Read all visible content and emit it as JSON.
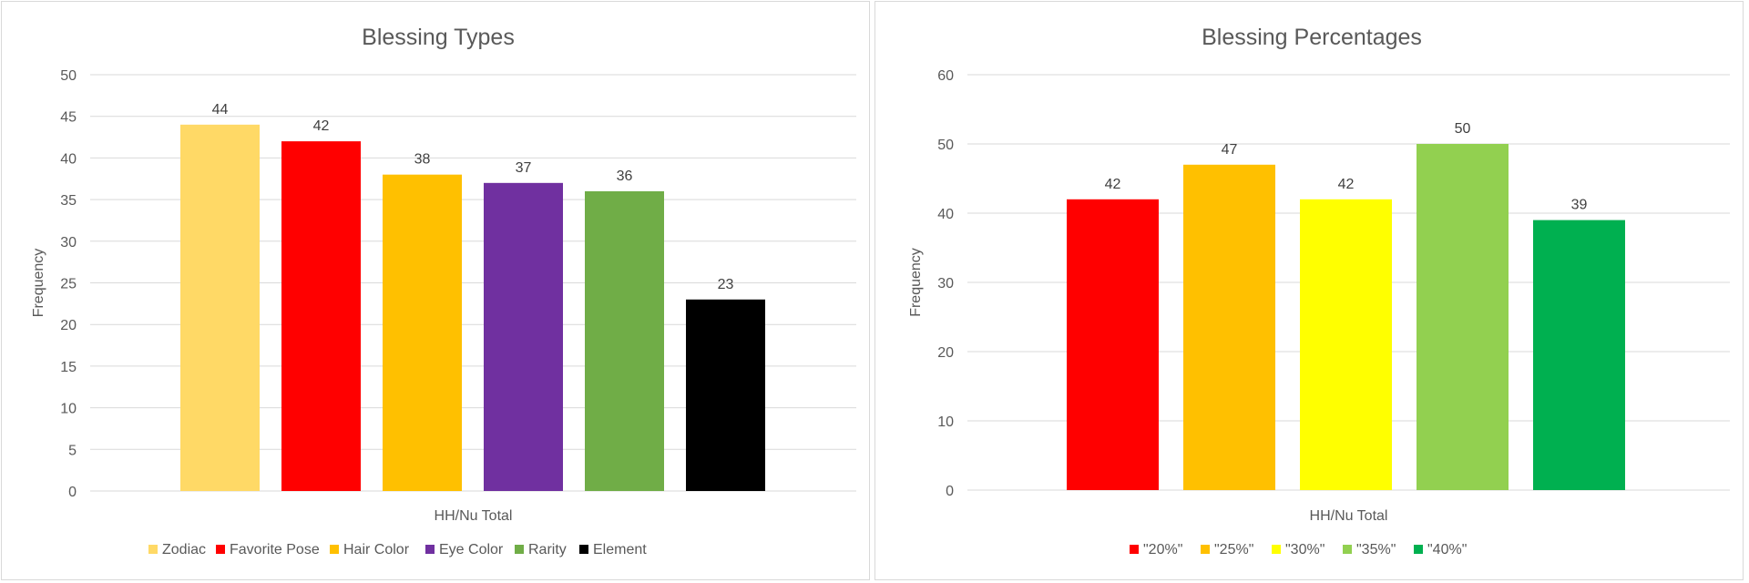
{
  "chart_data": [
    {
      "type": "bar",
      "title": "Blessing Types",
      "xlabel": "HH/Nu Total",
      "ylabel": "Frequency",
      "ylim": [
        0,
        50
      ],
      "ytick_step": 5,
      "categories": [
        "HH/Nu Total"
      ],
      "grid": true,
      "legend_position": "bottom",
      "series": [
        {
          "name": "Zodiac",
          "values": [
            44
          ],
          "color": "#FFD966"
        },
        {
          "name": "Favorite Pose",
          "values": [
            42
          ],
          "color": "#FF0000"
        },
        {
          "name": "Hair Color",
          "values": [
            38
          ],
          "color": "#FFC000"
        },
        {
          "name": "Eye Color",
          "values": [
            37
          ],
          "color": "#7030A0"
        },
        {
          "name": "Rarity",
          "values": [
            36
          ],
          "color": "#70AD47"
        },
        {
          "name": "Element",
          "values": [
            23
          ],
          "color": "#000000"
        }
      ]
    },
    {
      "type": "bar",
      "title": "Blessing Percentages",
      "xlabel": "HH/Nu Total",
      "ylabel": "Frequency",
      "ylim": [
        0,
        60
      ],
      "ytick_step": 10,
      "categories": [
        "HH/Nu Total"
      ],
      "grid": true,
      "legend_position": "bottom",
      "series": [
        {
          "name": "\"20%\"",
          "values": [
            42
          ],
          "color": "#FF0000"
        },
        {
          "name": "\"25%\"",
          "values": [
            47
          ],
          "color": "#FFC000"
        },
        {
          "name": "\"30%\"",
          "values": [
            42
          ],
          "color": "#FFFF00"
        },
        {
          "name": "\"35%\"",
          "values": [
            50
          ],
          "color": "#92D050"
        },
        {
          "name": "\"40%\"",
          "values": [
            39
          ],
          "color": "#00B050"
        }
      ]
    }
  ]
}
